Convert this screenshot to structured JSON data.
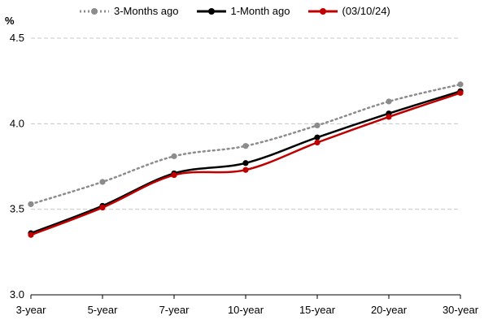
{
  "chart_data": {
    "type": "line",
    "ylabel": "%",
    "ylim": [
      3.0,
      4.5
    ],
    "yticks": [
      "3.0",
      "3.5",
      "4.0",
      "4.5"
    ],
    "categories": [
      "3-year",
      "5-year",
      "7-year",
      "10-year",
      "15-year",
      "20-year",
      "30-year"
    ],
    "grid": "horizontal dashed",
    "legend_position": "top",
    "series": [
      {
        "name": "3-Months ago",
        "color": "#8c8c8c",
        "style": "dotted",
        "values": [
          3.53,
          3.66,
          3.81,
          3.87,
          3.99,
          4.13,
          4.23
        ]
      },
      {
        "name": "1-Month ago",
        "color": "#000000",
        "style": "solid",
        "values": [
          3.36,
          3.52,
          3.71,
          3.77,
          3.92,
          4.06,
          4.19
        ]
      },
      {
        "name": "(03/10/24)",
        "color": "#c00000",
        "style": "solid",
        "values": [
          3.35,
          3.51,
          3.7,
          3.73,
          3.89,
          4.04,
          4.18
        ]
      }
    ]
  }
}
